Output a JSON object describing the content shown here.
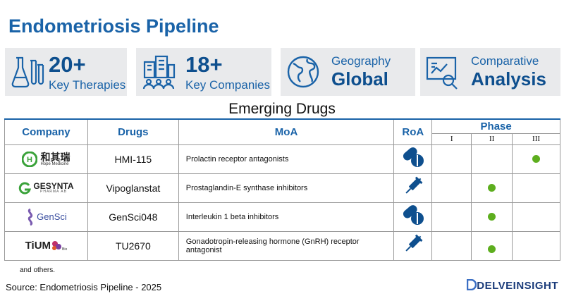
{
  "title": "Endometriosis Pipeline",
  "cards": [
    {
      "big": "20+",
      "small": "Key Therapies",
      "icon": "lab-flask-icon"
    },
    {
      "big": "18+",
      "small": "Key Companies",
      "icon": "buildings-people-icon"
    },
    {
      "big": "Global",
      "small": "Geography",
      "icon": "globe-icon"
    },
    {
      "big": "Analysis",
      "small": "Comparative",
      "icon": "chart-magnifier-icon"
    }
  ],
  "subheading": "Emerging Drugs",
  "table": {
    "headers": {
      "company": "Company",
      "drugs": "Drugs",
      "moa": "MoA",
      "roa": "RoA",
      "phase": "Phase"
    },
    "phases": [
      "I",
      "II",
      "III"
    ],
    "rows": [
      {
        "company": "和其瑞",
        "company_sub": "Hope Medicine",
        "drug": "HMI-115",
        "moa": "Prolactin receptor antagonists",
        "roa": "oral-pill-icon",
        "phase": "III"
      },
      {
        "company": "GESYNTA",
        "company_sub": "PHARMA AB",
        "drug": "Vipoglanstat",
        "moa": "Prostaglandin-E synthase inhibitors",
        "roa": "syringe-icon",
        "phase": "II"
      },
      {
        "company": "GenSci",
        "company_sub": "",
        "drug": "GenSci048",
        "moa": "Interleukin 1 beta inhibitors",
        "roa": "oral-pill-icon",
        "phase": "II"
      },
      {
        "company": "TiUM",
        "company_sub": "Bio",
        "drug": "TU2670",
        "moa": "Gonadotropin-releasing hormone (GnRH) receptor antagonist",
        "roa": "syringe-icon",
        "phase": "II"
      }
    ]
  },
  "footnote": "and others.",
  "source": "Source: Endometriosis Pipeline - 2025",
  "brand": "DELVEINSIGHT",
  "colors": {
    "accent": "#1a63a8",
    "dark": "#0e4f8e",
    "dot": "#5dae1e",
    "card_bg": "#e9eaec"
  }
}
